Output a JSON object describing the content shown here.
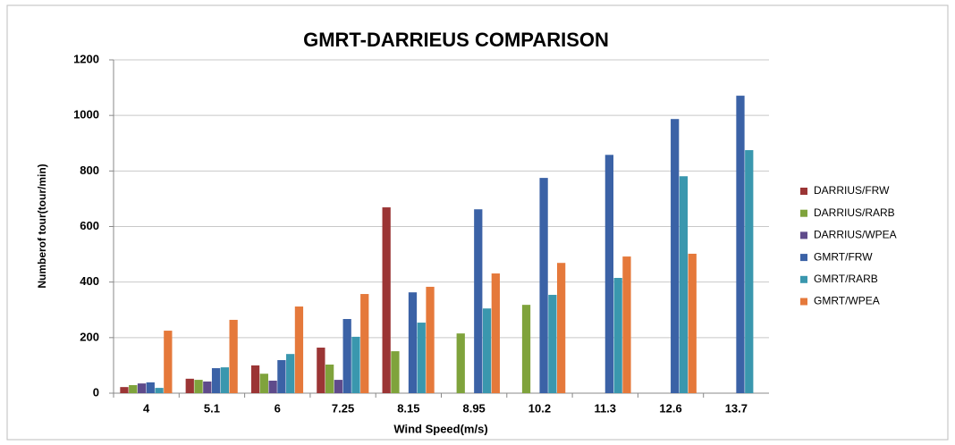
{
  "chart_data": {
    "type": "bar",
    "title": "GMRT-DARRIEUS COMPARISON",
    "x_label": "Wind Speed(m/s)",
    "y_label": "Numberof tour(tour/min)",
    "categories": [
      "4",
      "5.1",
      "6",
      "7.25",
      "8.15",
      "8.95",
      "10.2",
      "11.3",
      "12.6",
      "13.7"
    ],
    "series": [
      {
        "name": "DARRIUS/FRW",
        "color": "#9b3535",
        "values": [
          22,
          52,
          100,
          164,
          669,
          null,
          null,
          null,
          null,
          null
        ]
      },
      {
        "name": "DARRIUS/RARB",
        "color": "#7fa33c",
        "values": [
          29,
          48,
          70,
          103,
          151,
          215,
          318,
          null,
          null,
          null
        ]
      },
      {
        "name": "DARRIUS/WPEA",
        "color": "#5f4b8b",
        "values": [
          35,
          42,
          45,
          48,
          null,
          null,
          null,
          null,
          null,
          null
        ]
      },
      {
        "name": "GMRT/FRW",
        "color": "#3b62a6",
        "values": [
          39,
          90,
          119,
          267,
          363,
          662,
          775,
          858,
          987,
          1071
        ]
      },
      {
        "name": "GMRT/RARB",
        "color": "#3a97ae",
        "values": [
          19,
          93,
          141,
          203,
          254,
          305,
          354,
          415,
          781,
          875
        ]
      },
      {
        "name": "GMRT/WPEA",
        "color": "#e5793b",
        "values": [
          225,
          264,
          312,
          357,
          383,
          431,
          469,
          492,
          502,
          null
        ]
      }
    ],
    "ylim": [
      0,
      1200
    ],
    "yticks": [
      0,
      200,
      400,
      600,
      800,
      1000,
      1200
    ],
    "grid": true,
    "legend": "right"
  }
}
